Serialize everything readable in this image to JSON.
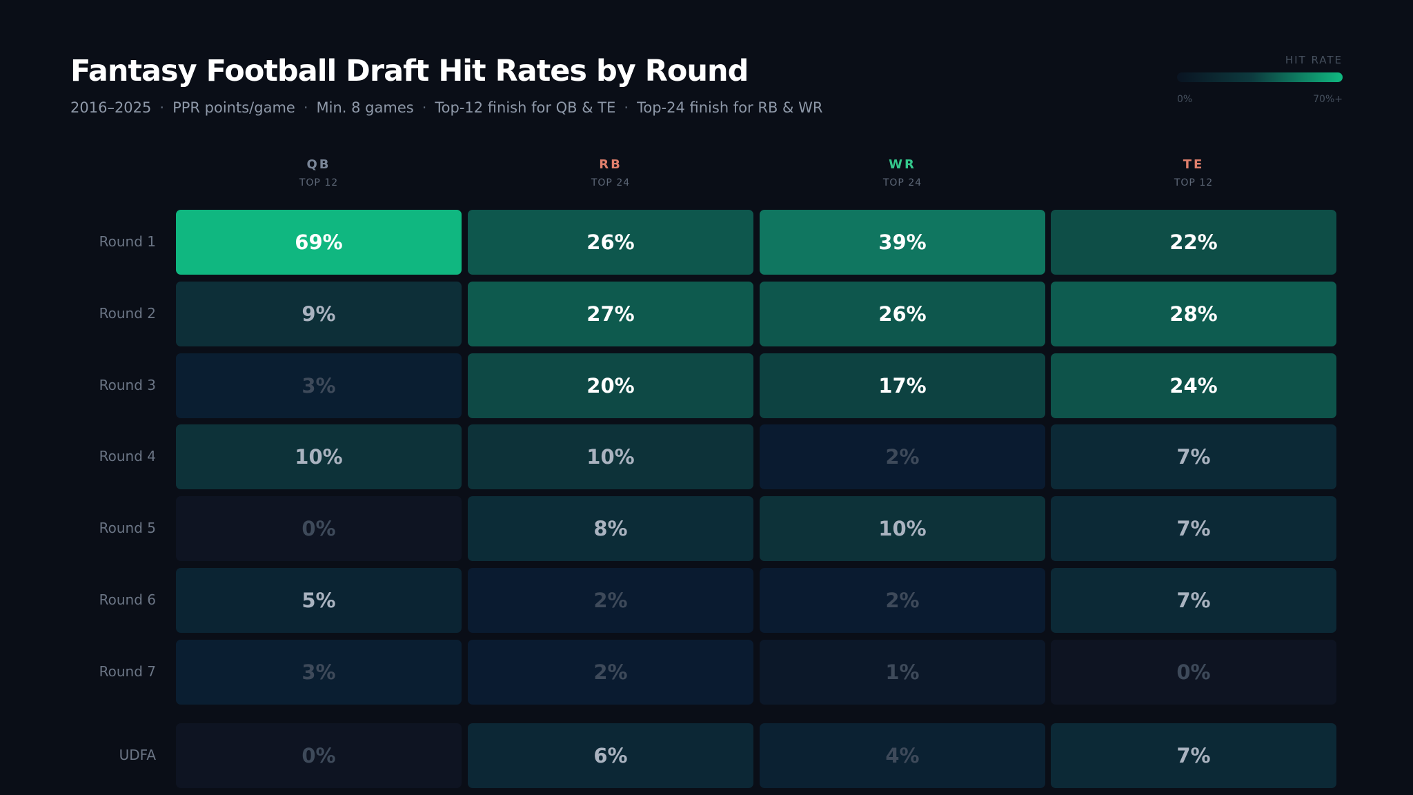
{
  "chart_data": {
    "type": "heatmap",
    "title": "Fantasy Football Draft Hit Rates by Round",
    "subtitle_parts": [
      "2016–2025",
      "PPR points/game",
      "Min. 8 games",
      "Top-12 finish for QB & TE",
      "Top-24 finish for RB & WR"
    ],
    "legend": {
      "title": "HIT RATE",
      "min_label": "0%",
      "max_label": "70%+",
      "min": 0,
      "max": 70
    },
    "columns": [
      {
        "name": "QB",
        "sub": "TOP 12",
        "color": "#7a8698"
      },
      {
        "name": "RB",
        "sub": "TOP 24",
        "color": "#e07f6c"
      },
      {
        "name": "WR",
        "sub": "TOP 24",
        "color": "#34c88c"
      },
      {
        "name": "TE",
        "sub": "TOP 12",
        "color": "#e07f6c"
      }
    ],
    "rows": [
      "Round 1",
      "Round 2",
      "Round 3",
      "Round 4",
      "Round 5",
      "Round 6",
      "Round 7",
      "UDFA"
    ],
    "values": [
      [
        69,
        26,
        39,
        22
      ],
      [
        9,
        27,
        26,
        28
      ],
      [
        3,
        20,
        17,
        24
      ],
      [
        10,
        10,
        2,
        7
      ],
      [
        0,
        8,
        10,
        7
      ],
      [
        5,
        2,
        2,
        7
      ],
      [
        3,
        2,
        1,
        0
      ],
      [
        0,
        6,
        4,
        7
      ]
    ],
    "value_suffix": "%"
  }
}
